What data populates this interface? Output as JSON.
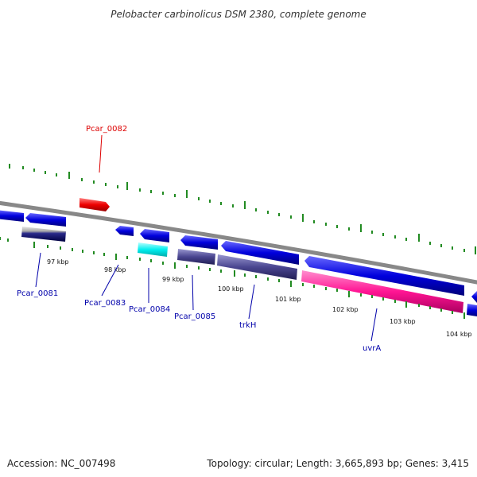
{
  "title": "Pelobacter carbinolicus DSM 2380, complete genome",
  "footer": {
    "accession": "Accession: NC_007498",
    "summary": "Topology: circular; Length: 3,665,893 bp; Genes: 3,415"
  },
  "colors": {
    "backbone": "#888888",
    "cds_blue": "#0000dd",
    "tick_green": "#228b22",
    "label_blue": "#0000aa",
    "label_red": "#cc0000"
  },
  "scale_labels": [
    "97 kbp",
    "98 kbp",
    "99 kbp",
    "100 kbp",
    "101 kbp",
    "102 kbp",
    "103 kbp",
    "104 kbp"
  ],
  "genes": [
    {
      "id": "Pcar_0081",
      "label": "Pcar_0081",
      "color": "#0000aa"
    },
    {
      "id": "Pcar_0082",
      "label": "Pcar_0082",
      "color": "#dd0000"
    },
    {
      "id": "Pcar_0083",
      "label": "Pcar_0083",
      "color": "#0000aa"
    },
    {
      "id": "Pcar_0084",
      "label": "Pcar_0084",
      "color": "#0000aa"
    },
    {
      "id": "Pcar_0085",
      "label": "Pcar_0085",
      "color": "#0000aa"
    },
    {
      "id": "trkH",
      "label": "trkH",
      "color": "#0000aa"
    },
    {
      "id": "uvrA",
      "label": "uvrA",
      "color": "#0000aa"
    }
  ]
}
